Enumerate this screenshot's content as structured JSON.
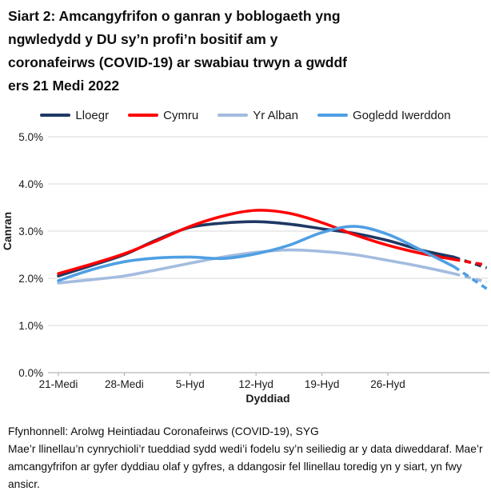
{
  "title": {
    "lines": [
      "Siart 2: Amcangyfrifon o ganran y boblogaeth yng",
      "ngwledydd y DU sy’n profi’n bositif am y",
      "coronafeirws (COVID-19) ar swabiau trwyn a gwddf",
      "ers 21 Medi 2022"
    ]
  },
  "chart_data": {
    "type": "line",
    "title": "Siart 2: Amcangyfrifon o ganran y boblogaeth yng ngwledydd y DU sy’n profi’n bositif am y coronafeirws (COVID-19) ar swabiau trwyn a gwddf ers 21 Medi 2022",
    "xlabel": "Dyddiad",
    "ylabel": "Canran",
    "ylim": [
      0,
      5
    ],
    "ytick_labels": [
      "0.0%",
      "1.0%",
      "2.0%",
      "3.0%",
      "4.0%",
      "5.0%"
    ],
    "categories": [
      "21-Medi",
      "28-Medi",
      "5-Hyd",
      "12-Hyd",
      "19-Hyd",
      "26-Hyd"
    ],
    "x_resolution": "points every half week from 21 Medi 2022; final dashed segment = less certain estimates",
    "legend_position": "top",
    "grid": "horizontal only",
    "series": [
      {
        "name": "Lloegr",
        "color": "#1f3864",
        "values": [
          2.05,
          2.27,
          2.5,
          2.82,
          3.08,
          3.17,
          3.2,
          3.15,
          3.05,
          2.95,
          2.8,
          2.6,
          2.45,
          2.22
        ],
        "dash_from_index": 12
      },
      {
        "name": "Cymru",
        "color": "#ff0000",
        "values": [
          2.1,
          2.3,
          2.52,
          2.8,
          3.1,
          3.32,
          3.44,
          3.38,
          3.18,
          2.92,
          2.7,
          2.53,
          2.4,
          2.28
        ],
        "dash_from_index": 12
      },
      {
        "name": "Yr Alban",
        "color": "#a3bcdf",
        "values": [
          1.9,
          1.97,
          2.05,
          2.18,
          2.32,
          2.45,
          2.55,
          2.6,
          2.57,
          2.5,
          2.38,
          2.25,
          2.1,
          1.92
        ],
        "dash_from_index": 12
      },
      {
        "name": "Gogledd Iwerddon",
        "color": "#4f9fe3",
        "values": [
          1.95,
          2.18,
          2.35,
          2.43,
          2.45,
          2.42,
          2.52,
          2.7,
          2.97,
          3.1,
          2.93,
          2.6,
          2.25,
          1.78
        ],
        "dash_from_index": 12
      }
    ]
  },
  "footer": {
    "source": "Ffynhonnell: Arolwg Heintiadau Coronafeirws (COVID-19), SYG",
    "note": "Mae’r llinellau’n cynrychioli’r tueddiad sydd wedi’i fodelu sy’n seiliedig ar y data diweddaraf. Mae’r amcangyfrifon ar gyfer dyddiau olaf y gyfres, a ddangosir fel llinellau toredig yn y siart, yn fwy ansicr."
  },
  "style": {
    "gridline_color": "#d9d9d9",
    "axis_color": "#a6a6a6",
    "text_color": "#1a1a1a"
  }
}
